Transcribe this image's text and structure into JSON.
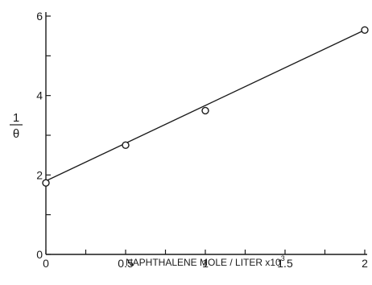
{
  "chart_data": {
    "type": "scatter",
    "title": "",
    "xlabel": "NAPHTHALENE   MOLE / LITER x10",
    "xlabel_superscript": "3",
    "ylabel_numerator": "1",
    "ylabel_denominator": "θ",
    "xlim": [
      0,
      2
    ],
    "ylim": [
      0,
      6
    ],
    "x_ticks": [
      0,
      0.25,
      0.5,
      0.75,
      1,
      1.25,
      1.5,
      1.75,
      2
    ],
    "x_tick_labels": [
      {
        "value": 0,
        "label": "0"
      },
      {
        "value": 0.5,
        "label": "0.5"
      },
      {
        "value": 1,
        "label": "1"
      },
      {
        "value": 1.5,
        "label": "1.5"
      },
      {
        "value": 2,
        "label": "2"
      }
    ],
    "y_ticks": [
      0,
      1,
      2,
      3,
      4,
      5,
      6
    ],
    "y_tick_labels": [
      {
        "value": 0,
        "label": "0"
      },
      {
        "value": 2,
        "label": "2"
      },
      {
        "value": 4,
        "label": "4"
      },
      {
        "value": 6,
        "label": "6"
      }
    ],
    "grid": false,
    "series": [
      {
        "marker": "open-circle",
        "x": [
          0,
          0.5,
          1,
          2
        ],
        "y": [
          1.8,
          2.75,
          3.62,
          5.65
        ]
      }
    ],
    "fit_line": {
      "x": [
        0,
        2
      ],
      "y": [
        1.85,
        5.65
      ]
    }
  }
}
